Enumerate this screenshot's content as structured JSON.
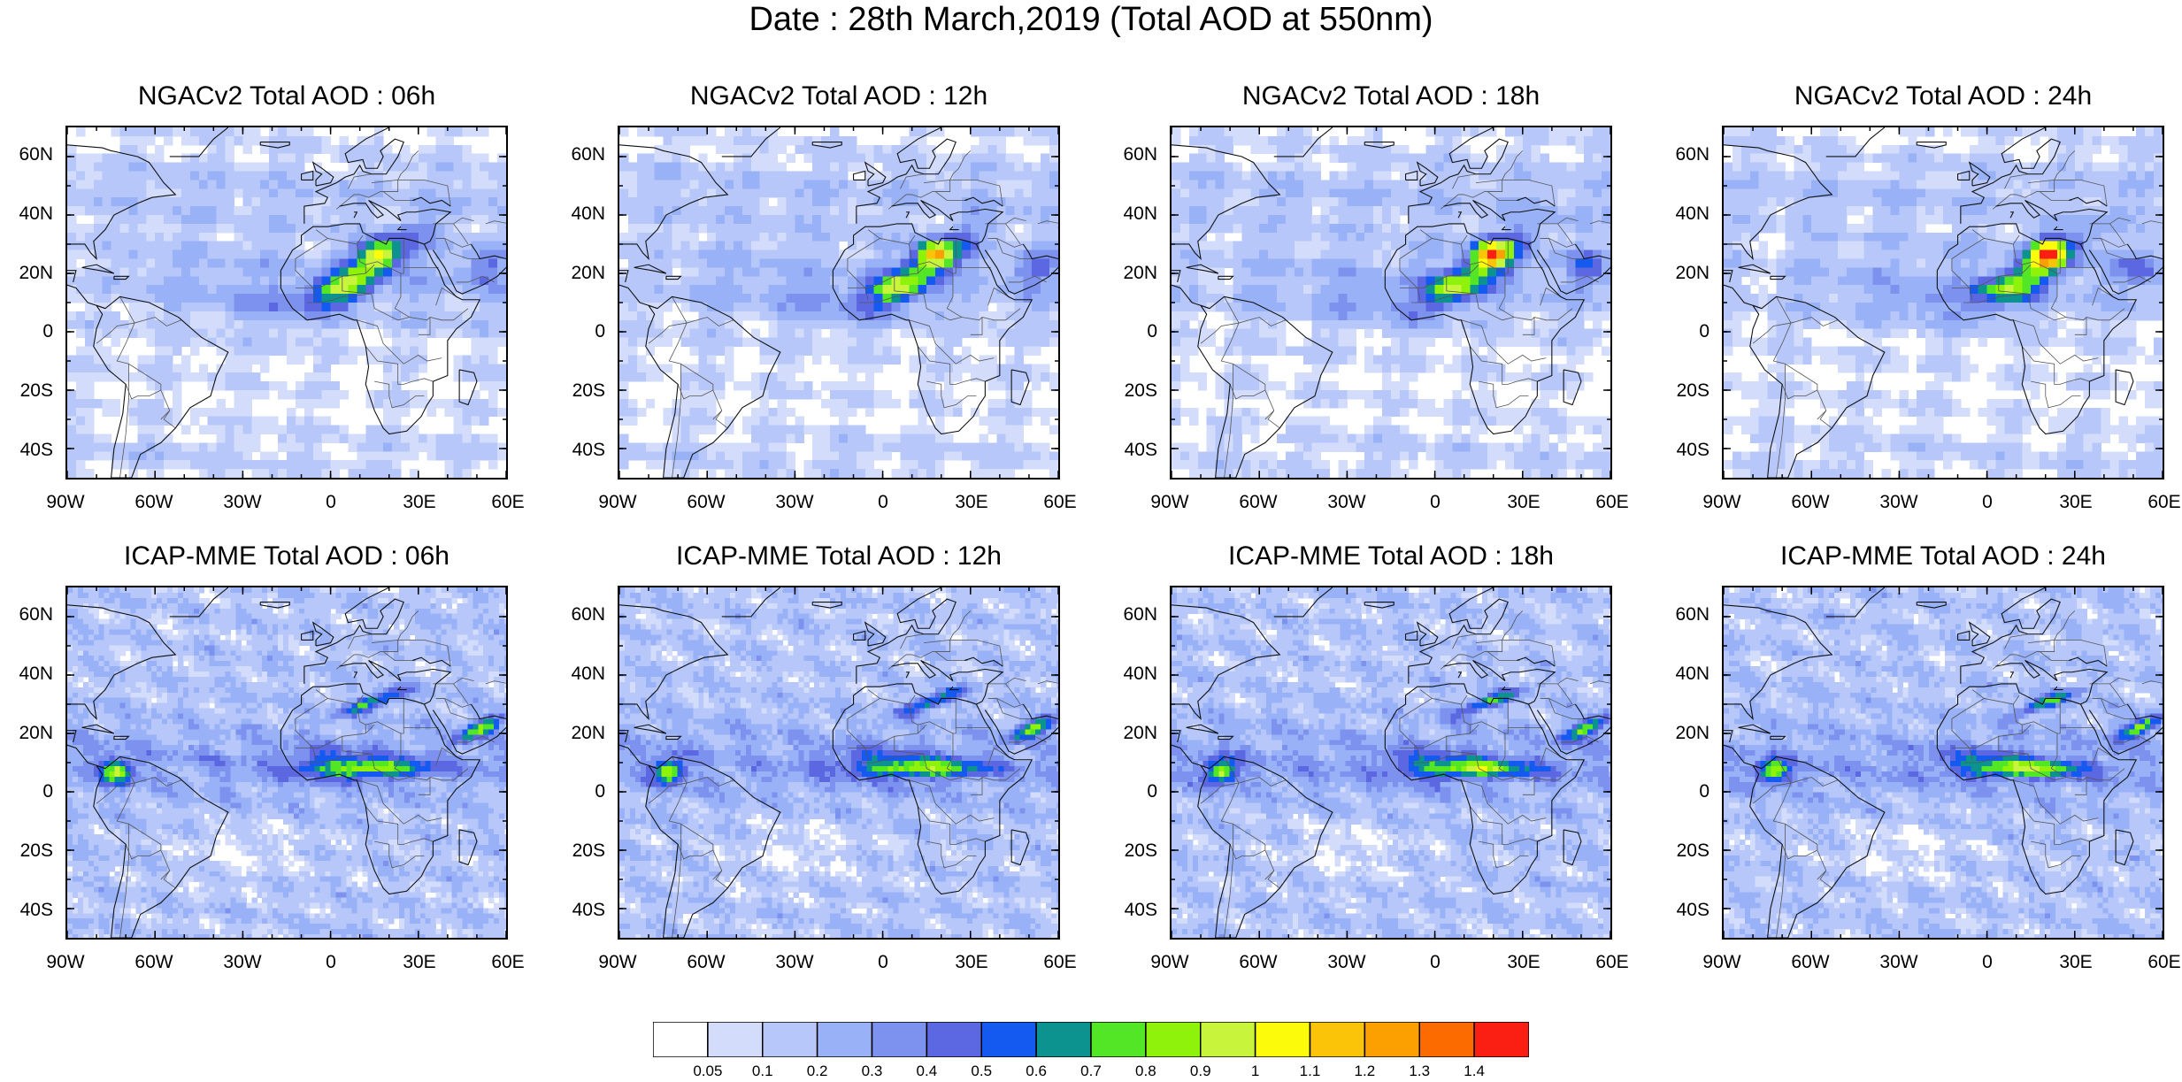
{
  "title": "Date : 28th March,2019 (Total AOD at 550nm)",
  "panels": [
    {
      "title": "NGACv2 Total AOD : 06h",
      "model": "NGACv2",
      "hour": "06h"
    },
    {
      "title": "NGACv2 Total AOD : 12h",
      "model": "NGACv2",
      "hour": "12h"
    },
    {
      "title": "NGACv2 Total AOD : 18h",
      "model": "NGACv2",
      "hour": "18h"
    },
    {
      "title": "NGACv2 Total AOD : 24h",
      "model": "NGACv2",
      "hour": "24h"
    },
    {
      "title": "ICAP-MME Total AOD : 06h",
      "model": "ICAP-MME",
      "hour": "06h"
    },
    {
      "title": "ICAP-MME Total AOD : 12h",
      "model": "ICAP-MME",
      "hour": "12h"
    },
    {
      "title": "ICAP-MME Total AOD : 18h",
      "model": "ICAP-MME",
      "hour": "18h"
    },
    {
      "title": "ICAP-MME Total AOD : 24h",
      "model": "ICAP-MME",
      "hour": "24h"
    }
  ],
  "lat_labels": [
    "60N",
    "40N",
    "20N",
    "0",
    "20S",
    "40S"
  ],
  "lon_labels": [
    "90W",
    "60W",
    "30W",
    "0",
    "30E",
    "60E"
  ],
  "map_extent": {
    "lon": [
      -90,
      60
    ],
    "lat": [
      -50,
      70
    ]
  },
  "colorbar": {
    "labels": [
      "0.05",
      "0.1",
      "0.2",
      "0.3",
      "0.4",
      "0.5",
      "0.6",
      "0.7",
      "0.8",
      "0.9",
      "1",
      "1.1",
      "1.2",
      "1.3",
      "1.4"
    ],
    "colors": [
      "#ffffff",
      "#d3ddfb",
      "#b7c7f9",
      "#98b1f7",
      "#7d92ee",
      "#5c68e2",
      "#1459f0",
      "#0c9390",
      "#52e626",
      "#8ff20b",
      "#c8f53c",
      "#fbfb0a",
      "#fbc409",
      "#fba000",
      "#fb6b00",
      "#fb1e12"
    ]
  }
}
